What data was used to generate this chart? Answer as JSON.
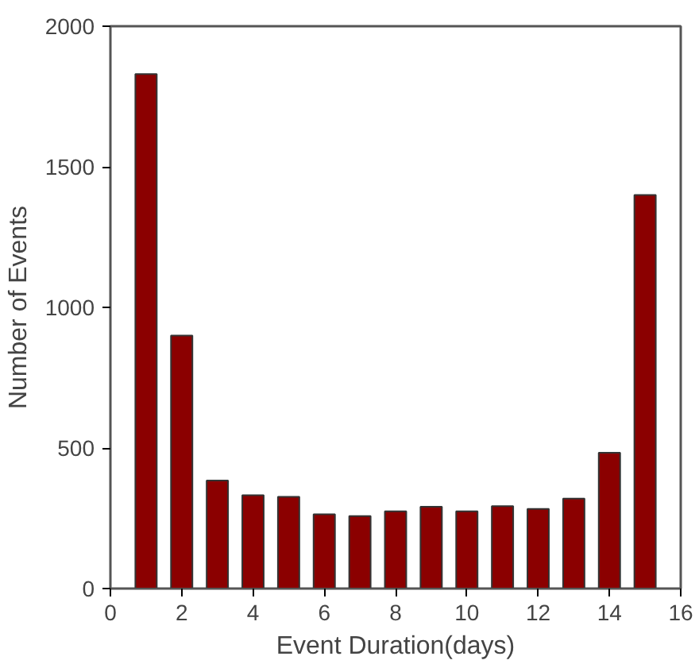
{
  "chart_data": {
    "type": "bar",
    "xlabel": "Event Duration(days)",
    "ylabel": "Number of Events",
    "x": [
      1,
      2,
      3,
      4,
      5,
      6,
      7,
      8,
      9,
      10,
      11,
      12,
      13,
      14,
      15
    ],
    "values": [
      1830,
      900,
      384,
      332,
      326,
      264,
      258,
      275,
      291,
      275,
      293,
      283,
      320,
      483,
      1400
    ],
    "color": "#8b0000",
    "xlim": [
      0,
      16
    ],
    "xticks": [
      0,
      2,
      4,
      6,
      8,
      10,
      12,
      14,
      16
    ],
    "ylim": [
      0,
      2000
    ],
    "yticks": [
      0,
      500,
      1000,
      1500,
      2000
    ],
    "grid": false
  }
}
